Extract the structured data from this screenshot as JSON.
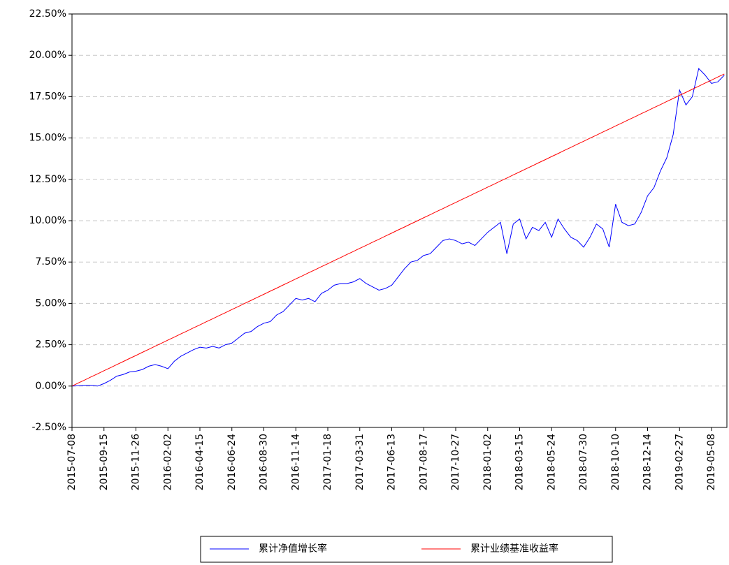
{
  "chart_data": {
    "type": "line",
    "categories": [
      "2015-07-08",
      null,
      null,
      null,
      null,
      "2015-09-15",
      null,
      null,
      null,
      null,
      "2015-11-26",
      null,
      null,
      null,
      null,
      "2016-02-02",
      null,
      null,
      null,
      null,
      "2016-04-15",
      null,
      null,
      null,
      null,
      "2016-06-24",
      null,
      null,
      null,
      null,
      "2016-08-30",
      null,
      null,
      null,
      null,
      "2016-11-14",
      null,
      null,
      null,
      null,
      "2017-01-18",
      null,
      null,
      null,
      null,
      "2017-03-31",
      null,
      null,
      null,
      null,
      "2017-06-13",
      null,
      null,
      null,
      null,
      "2017-08-17",
      null,
      null,
      null,
      null,
      "2017-10-27",
      null,
      null,
      null,
      null,
      "2018-01-02",
      null,
      null,
      null,
      null,
      "2018-03-15",
      null,
      null,
      null,
      null,
      "2018-05-24",
      null,
      null,
      null,
      null,
      "2018-07-30",
      null,
      null,
      null,
      null,
      "2018-10-10",
      null,
      null,
      null,
      null,
      "2018-12-14",
      null,
      null,
      null,
      null,
      "2019-02-27",
      null,
      null,
      null,
      null,
      "2019-05-08",
      null,
      null
    ],
    "series": [
      {
        "name": "累计净值增长率",
        "color": "#0000ff",
        "values": [
          0,
          0.02,
          0.05,
          0.05,
          0.0,
          0.15,
          0.35,
          0.6,
          0.7,
          0.85,
          0.9,
          1.0,
          1.2,
          1.3,
          1.2,
          1.05,
          1.5,
          1.8,
          2.0,
          2.2,
          2.35,
          2.3,
          2.4,
          2.3,
          2.5,
          2.6,
          2.9,
          3.2,
          3.3,
          3.6,
          3.8,
          3.9,
          4.3,
          4.5,
          4.9,
          5.3,
          5.2,
          5.3,
          5.1,
          5.6,
          5.8,
          6.1,
          6.2,
          6.2,
          6.3,
          6.5,
          6.2,
          6.0,
          5.8,
          5.9,
          6.1,
          6.6,
          7.1,
          7.5,
          7.6,
          7.9,
          8.0,
          8.4,
          8.8,
          8.9,
          8.8,
          8.6,
          8.7,
          8.5,
          8.9,
          9.3,
          9.6,
          9.9,
          8.0,
          9.8,
          10.1,
          8.9,
          9.6,
          9.4,
          9.9,
          9.0,
          10.1,
          9.5,
          9.0,
          8.8,
          8.4,
          9.0,
          9.8,
          9.5,
          8.4,
          11.0,
          9.9,
          9.7,
          9.8,
          10.5,
          11.5,
          12.0,
          13.0,
          13.8,
          15.2,
          17.9,
          17.0,
          17.5,
          19.2,
          18.8,
          18.3,
          18.4,
          18.8
        ]
      },
      {
        "name": "累计业绩基准收益率",
        "color": "#ff0000",
        "values": [
          0,
          0.19,
          0.37,
          0.56,
          0.74,
          0.93,
          1.11,
          1.3,
          1.48,
          1.67,
          1.85,
          2.04,
          2.22,
          2.41,
          2.59,
          2.78,
          2.96,
          3.15,
          3.33,
          3.52,
          3.7,
          3.89,
          4.07,
          4.26,
          4.44,
          4.63,
          4.81,
          5.0,
          5.18,
          5.37,
          5.55,
          5.74,
          5.92,
          6.11,
          6.29,
          6.48,
          6.66,
          6.85,
          7.03,
          7.22,
          7.4,
          7.59,
          7.77,
          7.96,
          8.14,
          8.33,
          8.51,
          8.7,
          8.88,
          9.07,
          9.25,
          9.44,
          9.62,
          9.81,
          9.99,
          10.18,
          10.36,
          10.55,
          10.73,
          10.92,
          11.1,
          11.29,
          11.47,
          11.66,
          11.84,
          12.03,
          12.21,
          12.4,
          12.58,
          12.77,
          12.95,
          13.14,
          13.32,
          13.51,
          13.69,
          13.88,
          14.06,
          14.25,
          14.43,
          14.62,
          14.8,
          14.99,
          15.17,
          15.36,
          15.54,
          15.73,
          15.91,
          16.1,
          16.28,
          16.47,
          16.65,
          16.84,
          17.02,
          17.21,
          17.39,
          17.58,
          17.76,
          17.95,
          18.13,
          18.32,
          18.5,
          18.69,
          18.87
        ]
      }
    ],
    "ylim": [
      -2.5,
      22.5
    ],
    "yticks": [
      {
        "value": -2.5,
        "label": "-2.50%"
      },
      {
        "value": 0,
        "label": "0.00%"
      },
      {
        "value": 2.5,
        "label": "2.50%"
      },
      {
        "value": 5,
        "label": "5.00%"
      },
      {
        "value": 7.5,
        "label": "7.50%"
      },
      {
        "value": 10,
        "label": "10.00%"
      },
      {
        "value": 12.5,
        "label": "12.50%"
      },
      {
        "value": 15,
        "label": "15.00%"
      },
      {
        "value": 17.5,
        "label": "17.50%"
      },
      {
        "value": 20,
        "label": "20.00%"
      },
      {
        "value": 22.5,
        "label": "22.50%"
      }
    ],
    "grid": true,
    "legend": "bottom"
  }
}
